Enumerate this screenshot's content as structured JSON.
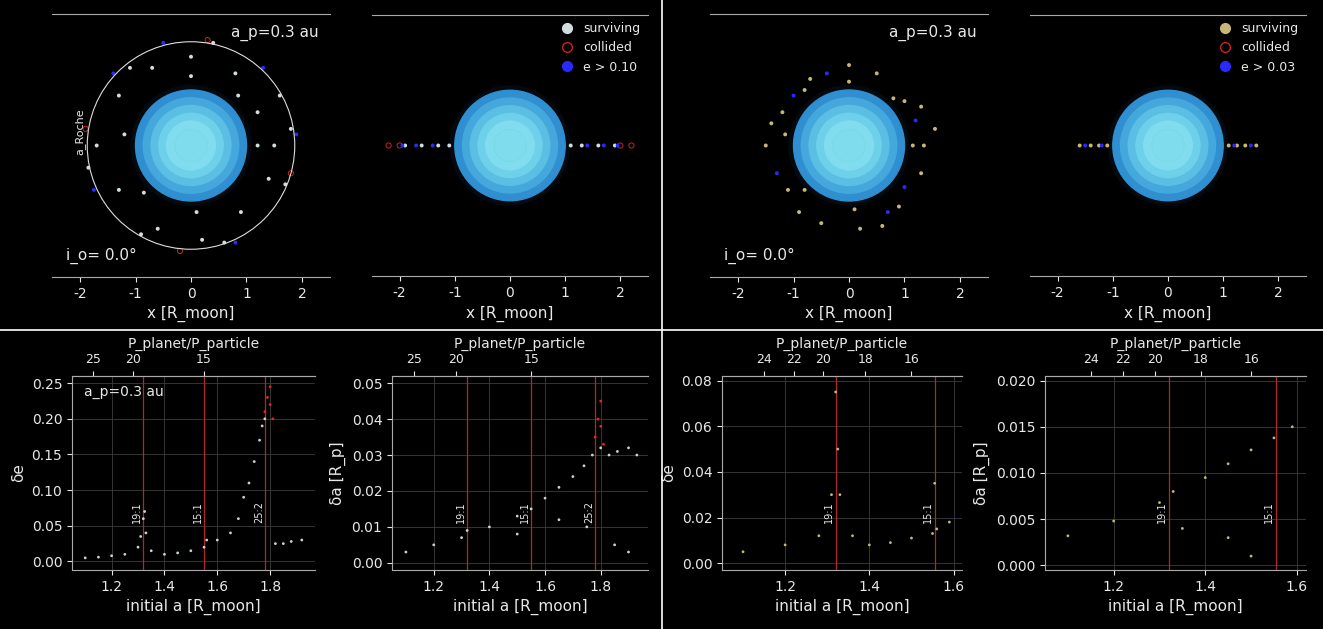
{
  "chart_data": [
    {
      "type": "scatter",
      "xlabel": "x [R_moon]",
      "xlim": [
        -2.5,
        2.5
      ],
      "ylim": [
        -2.37,
        2.37
      ],
      "xticks": [
        -2,
        -1,
        0,
        1,
        2
      ],
      "tick_labels": "x",
      "moon_radius": 1,
      "moon_color": "#6fd6e8",
      "roche_radius": 1.87,
      "roche_label": "a_Roche",
      "planet_label": "a_p=0.3 au",
      "inclination_label": "i_o= 0.0°",
      "series": [
        {
          "color": "#d0dede",
          "marker": "circle",
          "x": [
            1.5,
            1.2,
            0.8,
            0,
            -0.7,
            -1.3,
            -1.7,
            -1.3,
            -0.6,
            0.2,
            0.9,
            1.4,
            1.8,
            1.6,
            0.4,
            -1.1,
            -1.85,
            -0.9,
            0.6,
            1.7,
            1.2,
            0,
            -1.2,
            0.1,
            0.85,
            -0.85
          ],
          "values": [
            0,
            0.6,
            1.3,
            1.6,
            1.4,
            0.9,
            0,
            -0.8,
            -1.5,
            -1.7,
            -1.2,
            -0.6,
            0.3,
            0.9,
            1.85,
            1.4,
            -0.4,
            -1.6,
            -1.75,
            -0.7,
            0,
            1.25,
            0.2,
            -1.2,
            0.9,
            -0.85
          ]
        },
        {
          "color": "#cc2222",
          "marker": "hollow_circle",
          "x": [
            1.8,
            -1.9,
            0.3,
            -0.2
          ],
          "values": [
            -0.5,
            0.3,
            1.9,
            -1.9
          ]
        },
        {
          "color": "#2a2aff",
          "marker": "circle",
          "x": [
            1.9,
            -0.5,
            -1.75,
            0.8,
            1.3,
            -1.4
          ],
          "values": [
            0.2,
            1.85,
            -0.8,
            -1.75,
            1.4,
            1.3
          ]
        }
      ]
    },
    {
      "type": "scatter",
      "xlabel": "x [R_moon]",
      "xlim": [
        -2.5,
        2.5
      ],
      "ylim": [
        -2.37,
        2.37
      ],
      "xticks": [
        -2,
        -1,
        0,
        1,
        2
      ],
      "tick_labels": "x",
      "moon_radius": 1,
      "moon_color": "#6fd6e8",
      "legend": "upper right",
      "series": [
        {
          "name": "surviving",
          "color": "#d0dede",
          "marker": "circle",
          "x": [
            -1.9,
            -1.6,
            -1.3,
            -1.1,
            1.1,
            1.3,
            1.6,
            1.9
          ],
          "values": [
            0,
            0,
            0,
            0,
            0,
            0,
            0,
            0
          ]
        },
        {
          "name": "collided",
          "color": "#cc2222",
          "marker": "hollow_circle",
          "x": [
            -2.2,
            -2.0,
            2.0,
            2.2
          ],
          "values": [
            0,
            0,
            0,
            0
          ]
        },
        {
          "name": "e > 0.10",
          "color": "#2a2aff",
          "marker": "circle",
          "x": [
            -1.95,
            -1.7,
            -1.4,
            1.4,
            1.7,
            1.95
          ],
          "values": [
            0,
            0,
            0,
            0,
            0,
            0
          ]
        }
      ]
    },
    {
      "type": "scatter",
      "xlabel": "x [R_moon]",
      "xlim": [
        -2.5,
        2.5
      ],
      "ylim": [
        -2.37,
        2.37
      ],
      "xticks": [
        -2,
        -1,
        0,
        1,
        2
      ],
      "tick_labels": "x",
      "moon_radius": 1,
      "moon_color": "#6fd6e8",
      "planet_label": "a_p=0.3 au",
      "inclination_label": "i_o= 0.0°",
      "series": [
        {
          "color": "#c8b878",
          "marker": "circle",
          "x": [
            1.35,
            1.0,
            0.5,
            0,
            -0.7,
            -1.2,
            -1.5,
            -1.1,
            -0.5,
            0.2,
            0.9,
            1.3,
            1.55,
            1.3,
            -1.4,
            -0.9,
            0.6,
            1.15,
            0,
            -1.15,
            0.1,
            0.8,
            -0.8,
            -0.8
          ],
          "values": [
            0,
            0.8,
            1.3,
            1.45,
            1.2,
            0.6,
            0,
            -0.8,
            -1.4,
            -1.5,
            -1.1,
            -0.5,
            0.3,
            0.7,
            0.4,
            -1.2,
            -1.45,
            0,
            1.15,
            0.2,
            -1.15,
            0.85,
            -0.8,
            1.0
          ]
        },
        {
          "color": "#cc2222",
          "marker": "hollow_circle",
          "x": [],
          "values": []
        },
        {
          "color": "#2a2aff",
          "marker": "circle",
          "x": [
            1.2,
            -0.4,
            -1.3,
            0.7,
            1.0,
            -1.0
          ],
          "values": [
            0.45,
            1.3,
            -0.5,
            -1.2,
            -0.75,
            0.9
          ]
        }
      ]
    },
    {
      "type": "scatter",
      "xlabel": "x [R_moon]",
      "xlim": [
        -2.5,
        2.5
      ],
      "ylim": [
        -2.37,
        2.37
      ],
      "xticks": [
        -2,
        -1,
        0,
        1,
        2
      ],
      "tick_labels": "x",
      "moon_radius": 1,
      "moon_color": "#6fd6e8",
      "legend": "upper right",
      "series": [
        {
          "name": "surviving",
          "color": "#c8b878",
          "marker": "circle",
          "x": [
            -1.6,
            -1.4,
            -1.25,
            -1.1,
            1.1,
            1.25,
            1.4,
            1.6
          ],
          "values": [
            0,
            0,
            0,
            0,
            0,
            0,
            0,
            0
          ]
        },
        {
          "name": "collided",
          "color": "#cc2222",
          "marker": "hollow_circle",
          "x": [],
          "values": []
        },
        {
          "name": "e > 0.03",
          "color": "#2a2aff",
          "marker": "circle",
          "x": [
            -1.5,
            -1.2,
            1.2,
            1.5
          ],
          "values": [
            0,
            0,
            0,
            0
          ]
        }
      ]
    },
    {
      "type": "scatter",
      "xlabel": "initial a [R_moon]",
      "ylabel": "δe",
      "x2label": "P_planet/P_particle",
      "planet_label": "a_p=0.3 au",
      "grid": true,
      "xlim": [
        1.05,
        1.97
      ],
      "ylim": [
        -0.012,
        0.26
      ],
      "xticks": [
        1.2,
        1.4,
        1.6,
        1.8
      ],
      "yticks": [
        {
          "value": 0,
          "label": "0.00"
        },
        0.05,
        {
          "value": 0.1,
          "label": "0.10"
        },
        0.15,
        {
          "value": 0.2,
          "label": "0.20"
        },
        0.25
      ],
      "x2ticks": [
        {
          "value": 1.13,
          "label": "25"
        },
        {
          "value": 1.28,
          "label": "20"
        },
        {
          "value": 1.55,
          "label": "15"
        }
      ],
      "resonances": [
        {
          "x": 1.32,
          "label": "19:1"
        },
        {
          "x": 1.55,
          "label": "15:1"
        },
        {
          "x": 1.78,
          "label": "25:2"
        }
      ],
      "series": [
        {
          "color": "#c5d5d5",
          "marker": "circle",
          "x": [
            1.1,
            1.15,
            1.2,
            1.25,
            1.3,
            1.31,
            1.32,
            1.325,
            1.33,
            1.35,
            1.4,
            1.45,
            1.5,
            1.55,
            1.56,
            1.6,
            1.65,
            1.68,
            1.7,
            1.72,
            1.74,
            1.76,
            1.77,
            1.78,
            1.82,
            1.85,
            1.88,
            1.92
          ],
          "values": [
            0.005,
            0.006,
            0.008,
            0.01,
            0.02,
            0.035,
            0.06,
            0.07,
            0.04,
            0.015,
            0.01,
            0.012,
            0.015,
            0.02,
            0.03,
            0.03,
            0.04,
            0.06,
            0.09,
            0.11,
            0.14,
            0.17,
            0.19,
            0.2,
            0.025,
            0.025,
            0.028,
            0.03
          ]
        },
        {
          "color": "#ee2222",
          "marker": "circle",
          "x": [
            1.78,
            1.79,
            1.8,
            1.8,
            1.81
          ],
          "values": [
            0.21,
            0.23,
            0.22,
            0.245,
            0.2
          ]
        }
      ]
    },
    {
      "type": "scatter",
      "xlabel": "initial a [R_moon]",
      "ylabel": "δa [R_p]",
      "x2label": "P_planet/P_particle",
      "grid": true,
      "xlim": [
        1.05,
        1.97
      ],
      "ylim": [
        -0.002,
        0.052
      ],
      "xticks": [
        1.2,
        1.4,
        1.6,
        1.8
      ],
      "yticks": [
        {
          "value": 0,
          "label": "0.00"
        },
        0.01,
        0.02,
        0.03,
        0.04,
        0.05
      ],
      "x2ticks": [
        {
          "value": 1.13,
          "label": "25"
        },
        {
          "value": 1.28,
          "label": "20"
        },
        {
          "value": 1.55,
          "label": "15"
        }
      ],
      "resonances": [
        {
          "x": 1.32,
          "label": "19:1"
        },
        {
          "x": 1.55,
          "label": "15:1"
        },
        {
          "x": 1.78,
          "label": "25:2"
        }
      ],
      "series": [
        {
          "color": "#c5d5d5",
          "marker": "circle",
          "x": [
            1.1,
            1.2,
            1.3,
            1.32,
            1.4,
            1.5,
            1.55,
            1.6,
            1.65,
            1.7,
            1.74,
            1.77,
            1.8,
            1.83,
            1.86,
            1.9,
            1.93,
            1.5,
            1.65,
            1.75,
            1.85,
            1.9
          ],
          "values": [
            0.003,
            0.005,
            0.007,
            0.009,
            0.01,
            0.013,
            0.015,
            0.018,
            0.021,
            0.024,
            0.027,
            0.03,
            0.032,
            0.03,
            0.031,
            0.032,
            0.03,
            0.008,
            0.012,
            0.01,
            0.005,
            0.003
          ]
        },
        {
          "color": "#ee2222",
          "marker": "circle",
          "x": [
            1.78,
            1.79,
            1.8,
            1.8,
            1.81
          ],
          "values": [
            0.035,
            0.04,
            0.045,
            0.038,
            0.033
          ]
        }
      ]
    },
    {
      "type": "scatter",
      "xlabel": "initial a [R_moon]",
      "ylabel": "δe",
      "x2label": "P_planet/P_particle",
      "grid": true,
      "xlim": [
        1.05,
        1.62
      ],
      "ylim": [
        -0.003,
        0.082
      ],
      "xticks": [
        1.2,
        1.4,
        1.6
      ],
      "yticks": [
        {
          "value": 0,
          "label": "0.00"
        },
        0.02,
        0.04,
        0.06,
        0.08
      ],
      "x2ticks": [
        {
          "value": 1.15,
          "label": "24"
        },
        {
          "value": 1.22,
          "label": "22"
        },
        {
          "value": 1.29,
          "label": "20"
        },
        {
          "value": 1.39,
          "label": "18"
        },
        {
          "value": 1.5,
          "label": "16"
        }
      ],
      "resonances": [
        {
          "x": 1.32,
          "label": "19:1"
        },
        {
          "x": 1.555,
          "label": "15:1"
        }
      ],
      "series": [
        {
          "color": "#c8b878",
          "marker": "circle",
          "x": [
            1.1,
            1.2,
            1.28,
            1.31,
            1.32,
            1.325,
            1.33,
            1.36,
            1.4,
            1.45,
            1.5,
            1.55,
            1.555,
            1.56,
            1.59
          ],
          "values": [
            0.005,
            0.008,
            0.012,
            0.03,
            0.075,
            0.05,
            0.03,
            0.012,
            0.008,
            0.009,
            0.011,
            0.013,
            0.035,
            0.015,
            0.018
          ]
        }
      ]
    },
    {
      "type": "scatter",
      "xlabel": "initial a [R_moon]",
      "ylabel": "δa [R_p]",
      "x2label": "P_planet/P_particle",
      "grid": true,
      "xlim": [
        1.05,
        1.62
      ],
      "ylim": [
        -0.0005,
        0.0205
      ],
      "xticks": [
        1.2,
        1.4,
        1.6
      ],
      "yticks": [
        {
          "value": 0,
          "label": "0.000"
        },
        0.005,
        {
          "value": 0.01,
          "label": "0.010"
        },
        0.015,
        {
          "value": 0.02,
          "label": "0.020"
        }
      ],
      "x2ticks": [
        {
          "value": 1.15,
          "label": "24"
        },
        {
          "value": 1.22,
          "label": "22"
        },
        {
          "value": 1.29,
          "label": "20"
        },
        {
          "value": 1.39,
          "label": "18"
        },
        {
          "value": 1.5,
          "label": "16"
        }
      ],
      "resonances": [
        {
          "x": 1.32,
          "label": "19:1"
        },
        {
          "x": 1.555,
          "label": "15:1"
        }
      ],
      "series": [
        {
          "color": "#c8b878",
          "marker": "circle",
          "x": [
            1.1,
            1.2,
            1.3,
            1.33,
            1.4,
            1.45,
            1.5,
            1.55,
            1.59,
            1.35,
            1.45,
            1.5
          ],
          "values": [
            0.0032,
            0.0048,
            0.0068,
            0.008,
            0.0095,
            0.011,
            0.0125,
            0.0138,
            0.015,
            0.004,
            0.003,
            0.001
          ]
        }
      ]
    }
  ]
}
